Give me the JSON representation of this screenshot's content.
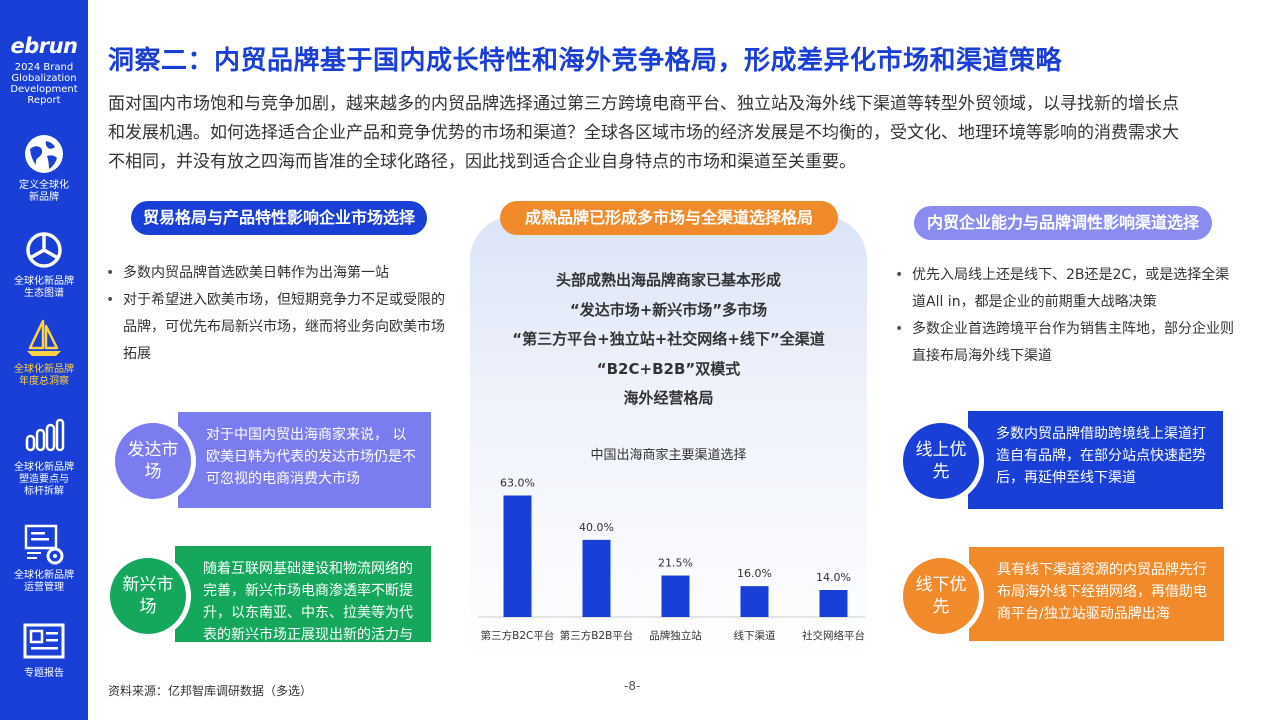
{
  "sidebar": {
    "logo": "ebrun",
    "logo_sub": [
      "2024 Brand",
      "Globalization",
      "Development",
      "Report"
    ],
    "items": [
      {
        "icon": "globe-icon",
        "label": [
          "定义全球化",
          "新品牌"
        ]
      },
      {
        "icon": "pie-chart-icon",
        "label": [
          "全球化新品牌",
          "生态图谱"
        ]
      },
      {
        "icon": "sailboat-icon",
        "label": [
          "全球化新品牌",
          "年度总洞察"
        ],
        "active": true
      },
      {
        "icon": "bar-chart-icon",
        "label": [
          "全球化新品牌",
          "塑造要点与",
          "标杆拆解"
        ]
      },
      {
        "icon": "code-gear-icon",
        "label": [
          "全球化新品牌",
          "运营管理"
        ]
      },
      {
        "icon": "newspaper-icon",
        "label": [
          "专题报告"
        ]
      }
    ]
  },
  "title": "洞察二：内贸品牌基于国内成长特性和海外竞争格局，形成差异化市场和渠道策略",
  "intro": "面对国内市场饱和与竞争加剧，越来越多的内贸品牌选择通过第三方跨境电商平台、独立站及海外线下渠道等转型外贸领域，以寻找新的增长点和发展机遇。如何选择适合企业产品和竞争优势的市场和渠道？全球各区域市场的经济发展是不均衡的，受文化、地理环境等影响的消费需求大不相同，并没有放之四海而皆准的全球化路径，因此找到适合企业自身特点的市场和渠道至关重要。",
  "left": {
    "pill": "贸易格局与产品特性影响企业市场选择",
    "bullets": [
      "多数内贸品牌首选欧美日韩作为出海第一站",
      "对于希望进入欧美市场，但短期竞争力不足或受限的品牌，可优先布局新兴市场，继而将业务向欧美市场拓展"
    ],
    "callouts": [
      {
        "tag": "发达市场",
        "text": "对于中国内贸出海商家来说， 以欧美日韩为代表的发达市场仍是不可忽视的电商消费大市场"
      },
      {
        "tag": "新兴市场",
        "text": "随着互联网基础建设和物流网络的完善，新兴市场电商渗透率不断提升，以东南亚、中东、拉美等为代表的新兴市场正展现出新的活力与机遇"
      }
    ]
  },
  "center": {
    "pill": "成熟品牌已形成多市场与全渠道选择格局",
    "lines": [
      "头部成熟出海品牌商家已基本形成",
      "“发达市场+新兴市场”多市场",
      "“第三方平台+独立站+社交网络+线下”全渠道",
      "“B2C+B2B”双模式",
      "海外经营格局"
    ]
  },
  "chart_data": {
    "type": "bar",
    "title": "中国出海商家主要渠道选择",
    "categories": [
      "第三方B2C平台",
      "第三方B2B平台",
      "品牌独立站",
      "线下渠道",
      "社交网络平台"
    ],
    "values": [
      63.0,
      40.0,
      21.5,
      16.0,
      14.0
    ],
    "value_labels": [
      "63.0%",
      "40.0%",
      "21.5%",
      "16.0%",
      "14.0%"
    ],
    "ylim": [
      0,
      70
    ],
    "bar_color": "#1a3fd6",
    "grid": false
  },
  "right": {
    "pill": "内贸企业能力与品牌调性影响渠道选择",
    "bullets": [
      "优先入局线上还是线下、2B还是2C，或是选择全渠道All in，都是企业的前期重大战略决策",
      "多数企业首选跨境平台作为销售主阵地，部分企业则直接布局海外线下渠道"
    ],
    "callouts": [
      {
        "tag": "线上优先",
        "text": "多数内贸品牌借助跨境线上渠道打造自有品牌，在部分站点快速起势后，再延伸至线下渠道"
      },
      {
        "tag": "线下优先",
        "text": "具有线下渠道资源的内贸品牌先行布局海外线下经销网络，再借助电商平台/独立站驱动品牌出海"
      }
    ]
  },
  "source": "资料来源：亿邦智库调研数据（多选）",
  "page_number": "-8-",
  "colors": {
    "primary": "#1a3fd6",
    "orange": "#f08a2a",
    "green": "#15a85c",
    "purple": "#7b7cf0",
    "lavender": "#8a8cf0",
    "active": "#ffd23f"
  }
}
